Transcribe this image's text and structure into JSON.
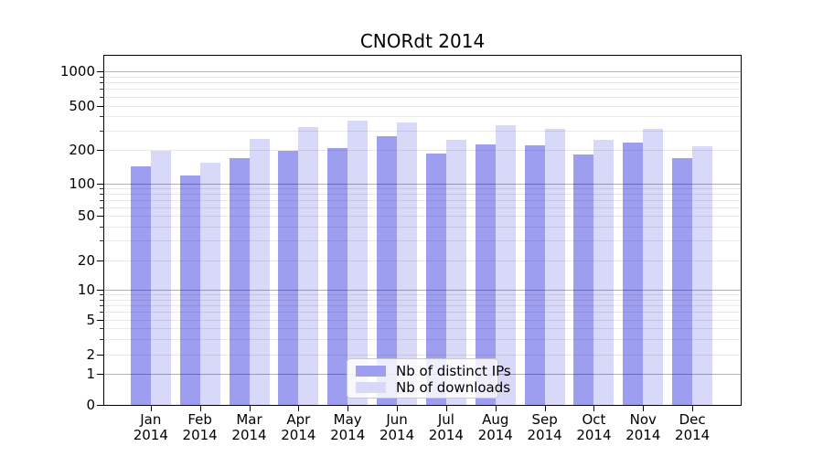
{
  "title": "CNORdt 2014",
  "colors": {
    "distinct_ips": "#9e9ef0",
    "downloads": "#d8d8f8",
    "axis": "#000000",
    "background": "#ffffff"
  },
  "legend": {
    "items": [
      {
        "label": "Nb of distinct IPs",
        "color": "#9e9ef0"
      },
      {
        "label": "Nb of downloads",
        "color": "#d8d8f8"
      }
    ]
  },
  "chart_data": {
    "type": "bar",
    "title": "CNORdt 2014",
    "categories": [
      "Jan 2014",
      "Feb 2014",
      "Mar 2014",
      "Apr 2014",
      "May 2014",
      "Jun 2014",
      "Jul 2014",
      "Aug 2014",
      "Sep 2014",
      "Oct 2014",
      "Nov 2014",
      "Dec 2014"
    ],
    "x_tick_months": [
      "Jan",
      "Feb",
      "Mar",
      "Apr",
      "May",
      "Jun",
      "Jul",
      "Aug",
      "Sep",
      "Oct",
      "Nov",
      "Dec"
    ],
    "x_tick_year": "2014",
    "series": [
      {
        "name": "Nb of distinct IPs",
        "color": "#9e9ef0",
        "values": [
          143,
          119,
          170,
          198,
          206,
          268,
          185,
          224,
          219,
          182,
          234,
          168
        ]
      },
      {
        "name": "Nb of downloads",
        "color": "#d8d8f8",
        "values": [
          198,
          155,
          250,
          318,
          366,
          355,
          245,
          333,
          307,
          245,
          309,
          217
        ]
      }
    ],
    "yscale": "symlog",
    "yticks": [
      0,
      1,
      2,
      5,
      10,
      20,
      50,
      100,
      200,
      500,
      1000
    ],
    "ylim": [
      0,
      1000
    ],
    "xlabel": "",
    "ylabel": "",
    "grid": "both",
    "legend_position": "inside lower-center"
  }
}
